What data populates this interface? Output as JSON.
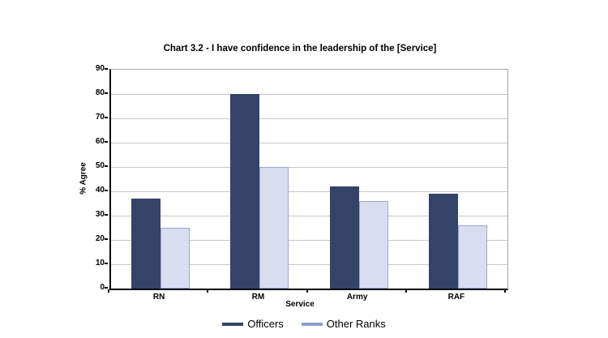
{
  "chart_data": {
    "type": "bar",
    "title": "Chart 3.2 - I have confidence in the leadership of the [Service]",
    "xlabel": "Service",
    "ylabel": "% Agree",
    "categories": [
      "RN",
      "RM",
      "Army",
      "RAF"
    ],
    "series": [
      {
        "name": "Officers",
        "values": [
          37,
          80,
          42,
          39
        ],
        "color": "#344368",
        "border_color": "#344368",
        "marker_color": "#344368"
      },
      {
        "name": "Other Ranks",
        "values": [
          25,
          50,
          36,
          26
        ],
        "color": "#d9ddf0",
        "border_color": "#9ba7d4",
        "marker_color": "#8e9fce"
      }
    ],
    "ylim": [
      0,
      90
    ],
    "yticks": [
      0,
      10,
      20,
      30,
      40,
      50,
      60,
      70,
      80,
      90
    ],
    "grid": true,
    "gridline_color": "#c6c6c6",
    "plot_border_color": "#a9a9a9",
    "axis_color": "#000000",
    "legend_position": "bottom"
  }
}
